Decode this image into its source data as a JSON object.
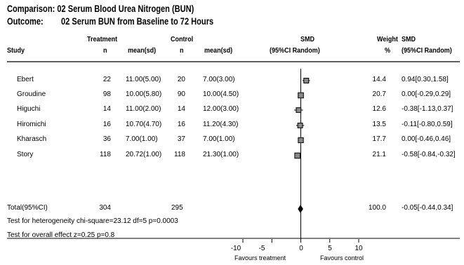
{
  "header": {
    "comparison": "Comparison: 02 Serum Blood Urea Nitrogen (BUN)",
    "outcome_label": "Outcome:",
    "outcome": "02 Serum BUN from Baseline to 72 Hours"
  },
  "columns": {
    "study": "Study",
    "treatment": "Treatment",
    "control": "Control",
    "n": "n",
    "mean_sd": "mean(sd)",
    "smd": "SMD",
    "ci": "(95%CI Random)",
    "weight": "Weight",
    "pct": "%",
    "smd2": "SMD",
    "ci2": "(95%CI Random)"
  },
  "rows": [
    {
      "study": "Ebert",
      "t_n": "22",
      "t_mean": "11.00(5.00)",
      "c_n": "20",
      "c_mean": "7.00(3.00)",
      "weight": "14.4",
      "smd_ci": "0.94[0.30,1.58]"
    },
    {
      "study": "Groudine",
      "t_n": "98",
      "t_mean": "10.00(5.80)",
      "c_n": "90",
      "c_mean": "10.00(4.50)",
      "weight": "20.7",
      "smd_ci": "0.00[-0.29,0.29]"
    },
    {
      "study": "Higuchi",
      "t_n": "14",
      "t_mean": "11.00(2.00)",
      "c_n": "14",
      "c_mean": "12.00(3.00)",
      "weight": "12.6",
      "smd_ci": "-0.38[-1.13,0.37]"
    },
    {
      "study": "Hiromichi",
      "t_n": "16",
      "t_mean": "10.70(4.70)",
      "c_n": "16",
      "c_mean": "11.20(4.30)",
      "weight": "13.5",
      "smd_ci": "-0.11[-0.80,0.59]"
    },
    {
      "study": "Kharasch",
      "t_n": "36",
      "t_mean": "7.00(1.00)",
      "c_n": "37",
      "c_mean": "7.00(1.00)",
      "weight": "17.7",
      "smd_ci": "0.00[-0.46,0.46]"
    },
    {
      "study": "Story",
      "t_n": "118",
      "t_mean": "20.72(1.00)",
      "c_n": "118",
      "c_mean": "21.30(1.00)",
      "weight": "21.1",
      "smd_ci": "-0.58[-0.84,-0.32]"
    }
  ],
  "total": {
    "label": "Total(95%CI)",
    "t_n": "304",
    "c_n": "295",
    "weight": "100.0",
    "smd_ci": "-0.05[-0.44,0.34]"
  },
  "heterogeneity": "Test for heterogeneity chi-square=23.12  df=5  p=0.0003",
  "overall_effect": "Test for overall effect  z=0.25  p=0.8",
  "axis": {
    "ticks": [
      "-10",
      "-5",
      "0",
      "5",
      "10"
    ],
    "favours_treatment": "Favours treatment",
    "favours_control": "Favours control"
  },
  "chart_data": {
    "type": "forest",
    "xlim": [
      -10,
      10
    ],
    "x_ticks": [
      -10,
      -5,
      0,
      5,
      10
    ],
    "studies": [
      {
        "name": "Ebert",
        "smd": 0.94,
        "lo": 0.3,
        "hi": 1.58,
        "weight": 14.4
      },
      {
        "name": "Groudine",
        "smd": 0.0,
        "lo": -0.29,
        "hi": 0.29,
        "weight": 20.7
      },
      {
        "name": "Higuchi",
        "smd": -0.38,
        "lo": -1.13,
        "hi": 0.37,
        "weight": 12.6
      },
      {
        "name": "Hiromichi",
        "smd": -0.11,
        "lo": -0.8,
        "hi": 0.59,
        "weight": 13.5
      },
      {
        "name": "Kharasch",
        "smd": 0.0,
        "lo": -0.46,
        "hi": 0.46,
        "weight": 17.7
      },
      {
        "name": "Story",
        "smd": -0.58,
        "lo": -0.84,
        "hi": -0.32,
        "weight": 21.1
      }
    ],
    "pooled": {
      "smd": -0.05,
      "lo": -0.44,
      "hi": 0.34
    }
  }
}
